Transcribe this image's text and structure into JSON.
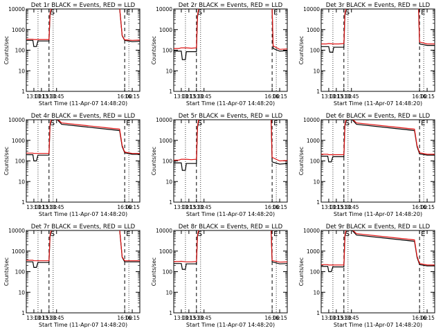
{
  "chart_data": [
    {
      "type": "line",
      "title": "Det 1r BLACK = Events, RED = LLD",
      "xlabel": "Start Time (11-Apr-07 14:48:20)",
      "ylabel": "Counts/sec",
      "xlim": [
        "12:45",
        "16:30"
      ],
      "ylim": [
        1,
        10000
      ],
      "yscale": "log",
      "x_ticks": [
        "13:00",
        "13:15",
        "13:30",
        "13:45",
        "16:00",
        "16:15"
      ],
      "y_ticks": [
        "1",
        "10",
        "100",
        "1000",
        "10000"
      ],
      "markers": [
        {
          "label": "S",
          "x": "13:30"
        },
        {
          "label": "E",
          "x": "15:60"
        }
      ],
      "series": [
        {
          "name": "BLACK = Events",
          "color": "#000000",
          "x": [
            "12:45",
            "12:55",
            "12:58",
            "13:00",
            "13:05",
            "13:08",
            "13:20",
            "13:30",
            "13:32",
            "13:35",
            "13:50",
            "15:50",
            "15:55",
            "16:00",
            "16:15",
            "16:30"
          ],
          "values": [
            300,
            300,
            300,
            150,
            150,
            280,
            280,
            280,
            5000,
            11000,
            11000,
            11000,
            500,
            300,
            260,
            270
          ]
        },
        {
          "name": "RED = LLD",
          "color": "#e01010",
          "x": [
            "12:45",
            "12:55",
            "12:58",
            "13:00",
            "13:05",
            "13:08",
            "13:20",
            "13:30",
            "13:32",
            "13:35",
            "13:50",
            "15:50",
            "15:55",
            "16:00",
            "16:15",
            "16:30"
          ],
          "values": [
            340,
            340,
            340,
            330,
            330,
            330,
            330,
            330,
            6000,
            12000,
            12000,
            12000,
            520,
            320,
            300,
            310
          ]
        }
      ]
    },
    {
      "type": "line",
      "title": "Det 2r BLACK = Events, RED = LLD",
      "xlabel": "Start Time (11-Apr-07 14:48:20)",
      "ylabel": "Counts/sec",
      "xlim": [
        "12:45",
        "16:30"
      ],
      "ylim": [
        1,
        10000
      ],
      "yscale": "log",
      "x_ticks": [
        "13:00",
        "13:15",
        "13:30",
        "13:45",
        "16:00",
        "16:15"
      ],
      "y_ticks": [
        "1",
        "10",
        "100",
        "1000",
        "10000"
      ],
      "markers": [
        {
          "label": "S",
          "x": "13:30"
        },
        {
          "label": "E",
          "x": "16:00"
        }
      ],
      "series": [
        {
          "name": "BLACK = Events",
          "color": "#000000",
          "x": [
            "12:45",
            "12:55",
            "13:00",
            "13:02",
            "13:08",
            "13:10",
            "13:20",
            "13:30",
            "13:32",
            "13:35",
            "13:55",
            "16:00",
            "16:02",
            "16:15",
            "16:30"
          ],
          "values": [
            90,
            90,
            90,
            35,
            35,
            85,
            85,
            85,
            4000,
            11000,
            11000,
            11000,
            120,
            90,
            95
          ]
        },
        {
          "name": "RED = LLD",
          "color": "#e01010",
          "x": [
            "12:45",
            "12:55",
            "13:00",
            "13:10",
            "13:20",
            "13:30",
            "13:32",
            "13:35",
            "13:55",
            "16:00",
            "16:02",
            "16:15",
            "16:30"
          ],
          "values": [
            120,
            120,
            130,
            130,
            125,
            130,
            5000,
            12000,
            12000,
            12000,
            160,
            110,
            115
          ]
        }
      ]
    },
    {
      "type": "line",
      "title": "Det 3r BLACK = Events, RED = LLD",
      "xlabel": "Start Time (11-Apr-07 14:48:20)",
      "ylabel": "Counts/sec",
      "xlim": [
        "12:45",
        "16:30"
      ],
      "ylim": [
        1,
        10000
      ],
      "yscale": "log",
      "x_ticks": [
        "13:00",
        "13:15",
        "13:30",
        "13:45",
        "16:00",
        "16:15"
      ],
      "y_ticks": [
        "1",
        "10",
        "100",
        "1000",
        "10000"
      ],
      "markers": [
        {
          "label": "S",
          "x": "13:30"
        },
        {
          "label": "E",
          "x": "16:00"
        }
      ],
      "series": [
        {
          "name": "BLACK = Events",
          "color": "#000000",
          "x": [
            "12:45",
            "12:55",
            "13:00",
            "13:02",
            "13:08",
            "13:10",
            "13:20",
            "13:30",
            "13:32",
            "13:35",
            "13:55",
            "15:58",
            "16:00",
            "16:15",
            "16:30"
          ],
          "values": [
            150,
            150,
            150,
            80,
            80,
            140,
            140,
            140,
            5000,
            11000,
            11000,
            11000,
            200,
            170,
            170
          ]
        },
        {
          "name": "RED = LLD",
          "color": "#e01010",
          "x": [
            "12:45",
            "12:55",
            "13:00",
            "13:10",
            "13:20",
            "13:30",
            "13:32",
            "13:35",
            "13:55",
            "15:58",
            "16:00",
            "16:15",
            "16:30"
          ],
          "values": [
            200,
            200,
            210,
            200,
            200,
            210,
            6000,
            12000,
            12000,
            12000,
            250,
            200,
            200
          ]
        }
      ]
    },
    {
      "type": "line",
      "title": "Det 4r BLACK = Events, RED = LLD",
      "xlabel": "Start Time (11-Apr-07 14:48:20)",
      "ylabel": "Counts/sec",
      "xlim": [
        "12:45",
        "16:30"
      ],
      "ylim": [
        1,
        10000
      ],
      "yscale": "log",
      "x_ticks": [
        "13:00",
        "13:15",
        "13:30",
        "13:45",
        "16:00",
        "16:15"
      ],
      "y_ticks": [
        "1",
        "10",
        "100",
        "1000",
        "10000"
      ],
      "markers": [
        {
          "label": "S",
          "x": "13:30"
        },
        {
          "label": "E",
          "x": "15:60"
        }
      ],
      "series": [
        {
          "name": "BLACK = Events",
          "color": "#000000",
          "x": [
            "12:45",
            "12:55",
            "12:58",
            "13:00",
            "13:05",
            "13:08",
            "13:20",
            "13:30",
            "13:32",
            "13:35",
            "13:45",
            "13:55",
            "15:50",
            "15:55",
            "16:00",
            "16:15",
            "16:30"
          ],
          "values": [
            200,
            200,
            200,
            100,
            100,
            190,
            190,
            190,
            5000,
            11000,
            11000,
            6000,
            3000,
            500,
            250,
            210,
            210
          ]
        },
        {
          "name": "RED = LLD",
          "color": "#e01010",
          "x": [
            "12:45",
            "12:55",
            "12:58",
            "13:00",
            "13:05",
            "13:08",
            "13:20",
            "13:30",
            "13:32",
            "13:35",
            "13:45",
            "13:55",
            "15:50",
            "15:55",
            "16:00",
            "16:15",
            "16:30"
          ],
          "values": [
            240,
            240,
            240,
            230,
            230,
            230,
            230,
            230,
            6000,
            12000,
            12000,
            7000,
            3500,
            560,
            270,
            230,
            230
          ]
        }
      ]
    },
    {
      "type": "line",
      "title": "Det 5r BLACK = Events, RED = LLD",
      "xlabel": "Start Time (11-Apr-07 14:48:20)",
      "ylabel": "Counts/sec",
      "xlim": [
        "12:45",
        "16:30"
      ],
      "ylim": [
        1,
        10000
      ],
      "yscale": "log",
      "x_ticks": [
        "13:00",
        "13:15",
        "13:30",
        "13:45",
        "16:00",
        "16:15"
      ],
      "y_ticks": [
        "1",
        "10",
        "100",
        "1000",
        "10000"
      ],
      "markers": [
        {
          "label": "S",
          "x": "13:30"
        },
        {
          "label": "E",
          "x": "16:00"
        }
      ],
      "series": [
        {
          "name": "BLACK = Events",
          "color": "#000000",
          "x": [
            "12:45",
            "12:55",
            "13:00",
            "13:02",
            "13:08",
            "13:10",
            "13:20",
            "13:30",
            "13:32",
            "13:35",
            "13:55",
            "15:58",
            "16:00",
            "16:15",
            "16:30"
          ],
          "values": [
            80,
            80,
            80,
            35,
            35,
            75,
            75,
            75,
            4000,
            11000,
            11000,
            11000,
            90,
            70,
            75
          ]
        },
        {
          "name": "RED = LLD",
          "color": "#e01010",
          "x": [
            "12:45",
            "12:55",
            "13:00",
            "13:10",
            "13:20",
            "13:30",
            "13:32",
            "13:35",
            "13:55",
            "15:58",
            "16:00",
            "16:15",
            "16:30"
          ],
          "values": [
            110,
            110,
            120,
            120,
            115,
            120,
            5000,
            12000,
            12000,
            12000,
            150,
            100,
            105
          ]
        }
      ]
    },
    {
      "type": "line",
      "title": "Det 6r BLACK = Events, RED = LLD",
      "xlabel": "Start Time (11-Apr-07 14:48:20)",
      "ylabel": "Counts/sec",
      "xlim": [
        "12:45",
        "16:30"
      ],
      "ylim": [
        1,
        10000
      ],
      "yscale": "log",
      "x_ticks": [
        "13:00",
        "13:15",
        "13:30",
        "13:45",
        "16:00",
        "16:15"
      ],
      "y_ticks": [
        "1",
        "10",
        "100",
        "1000",
        "10000"
      ],
      "markers": [
        {
          "label": "S",
          "x": "13:30"
        },
        {
          "label": "E",
          "x": "15:60"
        }
      ],
      "series": [
        {
          "name": "BLACK = Events",
          "color": "#000000",
          "x": [
            "12:45",
            "12:55",
            "12:58",
            "13:00",
            "13:05",
            "13:08",
            "13:20",
            "13:30",
            "13:32",
            "13:35",
            "13:45",
            "13:55",
            "15:50",
            "15:55",
            "16:00",
            "16:15",
            "16:30"
          ],
          "values": [
            170,
            170,
            170,
            90,
            90,
            160,
            160,
            160,
            5000,
            11000,
            11000,
            6000,
            3000,
            500,
            220,
            190,
            190
          ]
        },
        {
          "name": "RED = LLD",
          "color": "#e01010",
          "x": [
            "12:45",
            "12:55",
            "12:58",
            "13:00",
            "13:05",
            "13:08",
            "13:20",
            "13:30",
            "13:32",
            "13:35",
            "13:45",
            "13:55",
            "15:50",
            "15:55",
            "16:00",
            "16:15",
            "16:30"
          ],
          "values": [
            210,
            210,
            210,
            200,
            200,
            200,
            200,
            200,
            6000,
            12000,
            12000,
            7000,
            3500,
            560,
            250,
            210,
            210
          ]
        }
      ]
    },
    {
      "type": "line",
      "title": "Det 7r BLACK = Events, RED = LLD",
      "xlabel": "Start Time (11-Apr-07 14:48:20)",
      "ylabel": "Counts/sec",
      "xlim": [
        "12:45",
        "16:30"
      ],
      "ylim": [
        1,
        10000
      ],
      "yscale": "log",
      "x_ticks": [
        "13:00",
        "13:15",
        "13:30",
        "13:45",
        "16:00",
        "16:15"
      ],
      "y_ticks": [
        "1",
        "10",
        "100",
        "1000",
        "10000"
      ],
      "markers": [
        {
          "label": "S",
          "x": "13:30"
        },
        {
          "label": "E",
          "x": "15:60"
        }
      ],
      "series": [
        {
          "name": "BLACK = Events",
          "color": "#000000",
          "x": [
            "12:45",
            "12:55",
            "12:58",
            "13:00",
            "13:05",
            "13:08",
            "13:20",
            "13:30",
            "13:32",
            "13:35",
            "13:50",
            "15:50",
            "15:55",
            "16:00",
            "16:15",
            "16:30"
          ],
          "values": [
            300,
            300,
            300,
            160,
            160,
            280,
            280,
            280,
            5000,
            11000,
            11000,
            11000,
            500,
            300,
            300,
            300
          ]
        },
        {
          "name": "RED = LLD",
          "color": "#e01010",
          "x": [
            "12:45",
            "12:55",
            "12:58",
            "13:00",
            "13:05",
            "13:08",
            "13:20",
            "13:30",
            "13:32",
            "13:35",
            "13:50",
            "15:50",
            "15:55",
            "16:00",
            "16:15",
            "16:30"
          ],
          "values": [
            360,
            360,
            360,
            340,
            340,
            340,
            340,
            340,
            6000,
            12000,
            12000,
            12000,
            520,
            340,
            340,
            340
          ]
        }
      ]
    },
    {
      "type": "line",
      "title": "Det 8r BLACK = Events, RED = LLD",
      "xlabel": "Start Time (11-Apr-07 14:48:20)",
      "ylabel": "Counts/sec",
      "xlim": [
        "12:45",
        "16:30"
      ],
      "ylim": [
        1,
        10000
      ],
      "yscale": "log",
      "x_ticks": [
        "13:00",
        "13:15",
        "13:30",
        "13:45",
        "16:00",
        "16:15"
      ],
      "y_ticks": [
        "1",
        "10",
        "100",
        "1000",
        "10000"
      ],
      "markers": [
        {
          "label": "S",
          "x": "13:30"
        },
        {
          "label": "E",
          "x": "16:00"
        }
      ],
      "series": [
        {
          "name": "BLACK = Events",
          "color": "#000000",
          "x": [
            "12:45",
            "12:55",
            "13:00",
            "13:02",
            "13:08",
            "13:10",
            "13:20",
            "13:30",
            "13:32",
            "13:35",
            "13:55",
            "15:58",
            "16:00",
            "16:15",
            "16:30"
          ],
          "values": [
            250,
            250,
            250,
            130,
            130,
            240,
            240,
            240,
            5000,
            11000,
            11000,
            11000,
            300,
            240,
            250
          ]
        },
        {
          "name": "RED = LLD",
          "color": "#e01010",
          "x": [
            "12:45",
            "12:55",
            "13:00",
            "13:10",
            "13:20",
            "13:30",
            "13:32",
            "13:35",
            "13:55",
            "15:58",
            "16:00",
            "16:15",
            "16:30"
          ],
          "values": [
            310,
            310,
            320,
            300,
            300,
            310,
            6000,
            12000,
            12000,
            12000,
            350,
            290,
            300
          ]
        }
      ]
    },
    {
      "type": "line",
      "title": "Det 9r BLACK = Events, RED = LLD",
      "xlabel": "Start Time (11-Apr-07 14:48:20)",
      "ylabel": "Counts/sec",
      "xlim": [
        "12:45",
        "16:30"
      ],
      "ylim": [
        1,
        10000
      ],
      "yscale": "log",
      "x_ticks": [
        "13:00",
        "13:15",
        "13:30",
        "13:45",
        "16:00",
        "16:15"
      ],
      "y_ticks": [
        "1",
        "10",
        "100",
        "1000",
        "10000"
      ],
      "markers": [
        {
          "label": "S",
          "x": "13:30"
        },
        {
          "label": "E",
          "x": "15:60"
        }
      ],
      "series": [
        {
          "name": "BLACK = Events",
          "color": "#000000",
          "x": [
            "12:45",
            "12:55",
            "12:58",
            "13:00",
            "13:05",
            "13:08",
            "13:20",
            "13:30",
            "13:32",
            "13:35",
            "13:45",
            "13:55",
            "15:50",
            "15:55",
            "16:00",
            "16:15",
            "16:30"
          ],
          "values": [
            180,
            180,
            180,
            100,
            100,
            170,
            170,
            170,
            5000,
            11000,
            11000,
            6000,
            3000,
            500,
            220,
            190,
            190
          ]
        },
        {
          "name": "RED = LLD",
          "color": "#e01010",
          "x": [
            "12:45",
            "12:55",
            "12:58",
            "13:00",
            "13:05",
            "13:08",
            "13:20",
            "13:30",
            "13:32",
            "13:35",
            "13:45",
            "13:55",
            "15:50",
            "15:55",
            "16:00",
            "16:15",
            "16:30"
          ],
          "values": [
            220,
            220,
            220,
            210,
            210,
            210,
            210,
            210,
            6000,
            12000,
            12000,
            7000,
            3500,
            560,
            250,
            210,
            210
          ]
        }
      ]
    }
  ]
}
